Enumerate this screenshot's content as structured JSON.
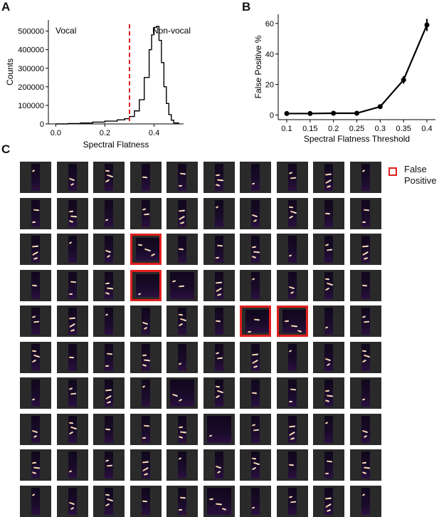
{
  "panels": {
    "a": "A",
    "b": "B",
    "c": "C"
  },
  "chart_data": [
    {
      "type": "line",
      "subtype": "histogram-step",
      "annotations": {
        "left": "Vocal",
        "right": "Non-vocal"
      },
      "threshold_line": {
        "x": 0.3,
        "color": "#e02020",
        "style": "dashed"
      },
      "xlabel": "Spectral Flatness",
      "ylabel": "Counts",
      "xlim": [
        -0.03,
        0.52
      ],
      "ylim": [
        0,
        560000
      ],
      "xticks": [
        "0.0",
        "0.2",
        "0.4"
      ],
      "yticks": [
        "0",
        "100000",
        "200000",
        "300000",
        "400000",
        "500000"
      ],
      "x": [
        0.0,
        0.05,
        0.1,
        0.15,
        0.2,
        0.25,
        0.28,
        0.3,
        0.32,
        0.34,
        0.36,
        0.38,
        0.39,
        0.4,
        0.41,
        0.42,
        0.43,
        0.44,
        0.45,
        0.46,
        0.47,
        0.48,
        0.5
      ],
      "values": [
        0,
        2000,
        5000,
        10000,
        15000,
        22000,
        28000,
        40000,
        70000,
        130000,
        250000,
        400000,
        480000,
        520000,
        525000,
        450000,
        330000,
        200000,
        110000,
        50000,
        20000,
        5000,
        0
      ],
      "color": "#000000"
    },
    {
      "type": "line",
      "xlabel": "Spectral Flatness Threshold",
      "ylabel": "False Positive %",
      "x": [
        0.1,
        0.15,
        0.2,
        0.25,
        0.3,
        0.35,
        0.4
      ],
      "xticks": [
        "0.1",
        "0.15",
        "0.2",
        "0.25",
        "0.3",
        "0.35",
        "0.4"
      ],
      "yticks": [
        "0",
        "20",
        "40",
        "60"
      ],
      "ylim": [
        -3,
        66
      ],
      "values": [
        1,
        1,
        1.2,
        1.2,
        5.5,
        23,
        59
      ],
      "error": [
        0.5,
        0.5,
        0.5,
        0.5,
        1.5,
        2.5,
        4
      ],
      "color": "#000000"
    }
  ],
  "grid_panel": {
    "rows": 10,
    "cols": 10,
    "false_positive_cells": [
      [
        2,
        3
      ],
      [
        3,
        3
      ],
      [
        4,
        6
      ],
      [
        4,
        7
      ]
    ],
    "wide_cells": [
      [
        2,
        3
      ],
      [
        3,
        3
      ],
      [
        3,
        4
      ],
      [
        4,
        6
      ],
      [
        4,
        7
      ],
      [
        6,
        4
      ],
      [
        7,
        5
      ],
      [
        9,
        5
      ]
    ],
    "legend_color": "#e02020",
    "legend_line1": "False",
    "legend_line2": "Positive"
  }
}
